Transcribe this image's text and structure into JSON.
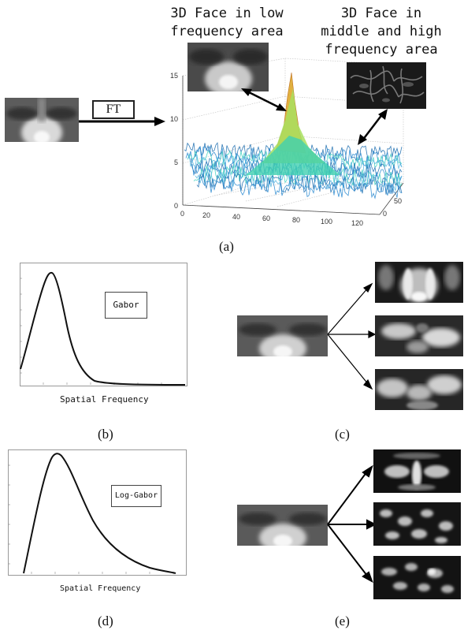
{
  "panel_a": {
    "ft_label": "FT",
    "low_freq_text_l1": "3D Face in low",
    "low_freq_text_l2": "frequency area",
    "high_freq_text_l1": "3D Face in",
    "high_freq_text_l2": "middle and high",
    "high_freq_text_l3": "frequency area",
    "z_ticks": [
      "15",
      "10",
      "5",
      "0"
    ],
    "x_ticks": [
      "0",
      "20",
      "40",
      "60",
      "80",
      "100",
      "120"
    ],
    "y_ticks": [
      "0",
      "50"
    ],
    "caption": "(a)"
  },
  "panel_b": {
    "curve_label": "Gabor",
    "xlabel": "Spatial Frequency",
    "caption": "(b)"
  },
  "panel_c": {
    "caption": "(c)"
  },
  "panel_d": {
    "curve_label": "Log-Gabor",
    "xlabel": "Spatial Frequency",
    "caption": "(d)"
  },
  "panel_e": {
    "caption": "(e)"
  },
  "colors": {
    "surface_low": "#1f6fb0",
    "surface_mid": "#3fd0c0",
    "surface_peak": "#e0b040"
  }
}
